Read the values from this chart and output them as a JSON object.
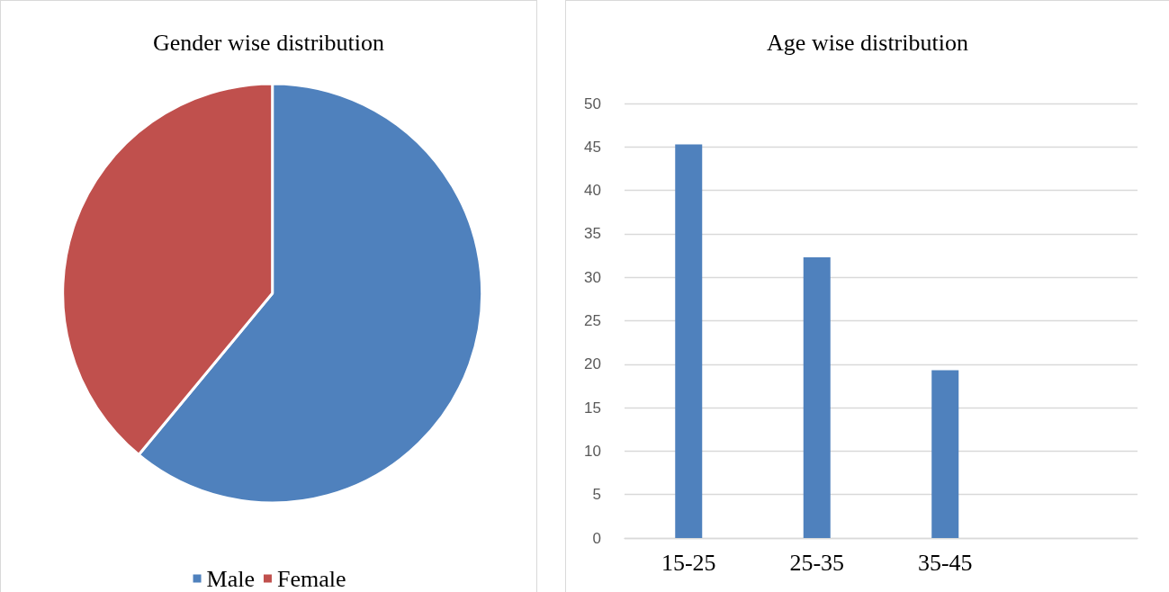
{
  "chart_data": [
    {
      "type": "pie",
      "title": "Gender wise distribution",
      "categories": [
        "Male",
        "Female"
      ],
      "values": [
        61,
        39
      ],
      "colors": [
        "#4f81bd",
        "#c0504d"
      ],
      "legend": "bottom"
    },
    {
      "type": "bar",
      "title": "Age wise distribution",
      "categories": [
        "15-25",
        "25-35",
        "35-45",
        null
      ],
      "values": [
        45.3,
        32.3,
        19.3,
        null
      ],
      "color": "#4f81bd",
      "ylim": [
        0,
        50
      ],
      "yticks": [
        0,
        5,
        10,
        15,
        20,
        25,
        30,
        35,
        40,
        45,
        50
      ],
      "grid": "y",
      "legend": false
    }
  ]
}
